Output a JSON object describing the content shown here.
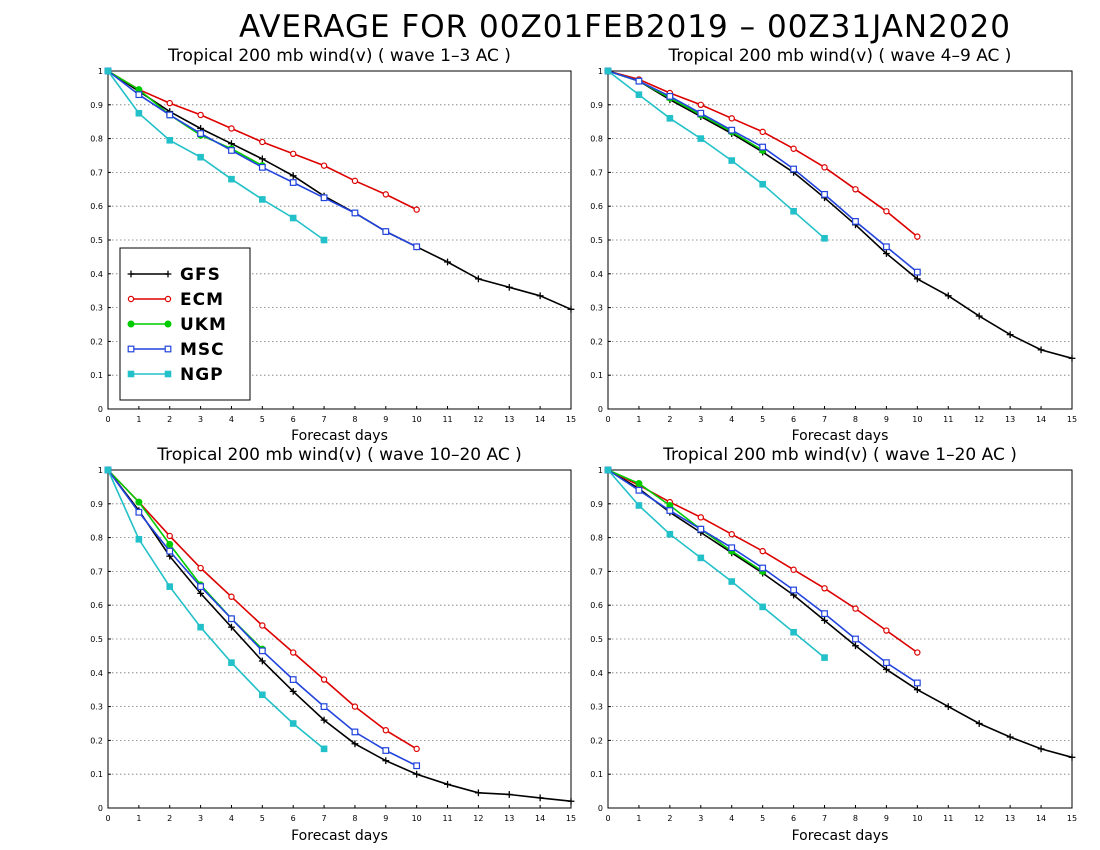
{
  "title": "AVERAGE FOR 00Z01FEB2019 – 00Z31JAN2020",
  "chart_data": [
    {
      "type": "line",
      "title": "Tropical 200 mb wind(v) ( wave 1–3 AC )",
      "xlabel": "Forecast days",
      "ylabel": "",
      "xlim": [
        0,
        15
      ],
      "ylim": [
        0,
        1
      ],
      "xticks": [
        "0",
        "1",
        "2",
        "3",
        "4",
        "5",
        "6",
        "7",
        "8",
        "9",
        "10",
        "11",
        "12",
        "13",
        "14",
        "15"
      ],
      "yticks": [
        "0",
        "0.1",
        "0.2",
        "0.3",
        "0.4",
        "0.5",
        "0.6",
        "0.7",
        "0.8",
        "0.9",
        "1"
      ],
      "grid": "horizontal dotted",
      "legend": "lower-left",
      "series": [
        {
          "name": "GFS",
          "color": "#000000",
          "marker": "plus",
          "x": [
            0,
            1,
            2,
            3,
            4,
            5,
            6,
            7,
            8,
            9,
            10,
            11,
            12,
            13,
            14,
            15
          ],
          "values": [
            1.0,
            0.94,
            0.88,
            0.83,
            0.785,
            0.74,
            0.69,
            0.63,
            0.58,
            0.525,
            0.48,
            0.435,
            0.385,
            0.36,
            0.335,
            0.295
          ]
        },
        {
          "name": "ECM",
          "color": "#dd0000",
          "marker": "circle",
          "x": [
            0,
            1,
            2,
            3,
            4,
            5,
            6,
            7,
            8,
            9,
            10
          ],
          "values": [
            1.0,
            0.945,
            0.905,
            0.87,
            0.83,
            0.79,
            0.755,
            0.72,
            0.675,
            0.635,
            0.59
          ]
        },
        {
          "name": "UKM",
          "color": "#00cc00",
          "marker": "filled-circle",
          "x": [
            0,
            1,
            2,
            3,
            4,
            5
          ],
          "values": [
            1.0,
            0.945,
            0.87,
            0.81,
            0.77,
            0.72
          ]
        },
        {
          "name": "MSC",
          "color": "#2244dd",
          "marker": "square",
          "x": [
            0,
            1,
            2,
            3,
            4,
            5,
            6,
            7,
            8,
            9,
            10
          ],
          "values": [
            1.0,
            0.93,
            0.87,
            0.815,
            0.765,
            0.715,
            0.67,
            0.625,
            0.58,
            0.525,
            0.48
          ]
        },
        {
          "name": "NGP",
          "color": "#22c0c8",
          "marker": "filled-square",
          "x": [
            0,
            1,
            2,
            3,
            4,
            5,
            6,
            7
          ],
          "values": [
            1.0,
            0.875,
            0.795,
            0.745,
            0.68,
            0.62,
            0.565,
            0.5
          ]
        }
      ]
    },
    {
      "type": "line",
      "title": "Tropical 200 mb wind(v) ( wave 4–9 AC )",
      "xlabel": "Forecast days",
      "ylabel": "",
      "xlim": [
        0,
        15
      ],
      "ylim": [
        0,
        1
      ],
      "xticks": [
        "0",
        "1",
        "2",
        "3",
        "4",
        "5",
        "6",
        "7",
        "8",
        "9",
        "10",
        "11",
        "12",
        "13",
        "14",
        "15"
      ],
      "yticks": [
        "0",
        "0.1",
        "0.2",
        "0.3",
        "0.4",
        "0.5",
        "0.6",
        "0.7",
        "0.8",
        "0.9",
        "1"
      ],
      "grid": "horizontal dotted",
      "legend": "none",
      "series": [
        {
          "name": "GFS",
          "color": "#000000",
          "marker": "plus",
          "x": [
            0,
            1,
            2,
            3,
            4,
            5,
            6,
            7,
            8,
            9,
            10,
            11,
            12,
            13,
            14,
            15
          ],
          "values": [
            1.0,
            0.97,
            0.915,
            0.865,
            0.815,
            0.76,
            0.7,
            0.625,
            0.545,
            0.46,
            0.385,
            0.335,
            0.275,
            0.22,
            0.175,
            0.15
          ]
        },
        {
          "name": "ECM",
          "color": "#dd0000",
          "marker": "circle",
          "x": [
            0,
            1,
            2,
            3,
            4,
            5,
            6,
            7,
            8,
            9,
            10
          ],
          "values": [
            1.0,
            0.975,
            0.935,
            0.9,
            0.86,
            0.82,
            0.77,
            0.715,
            0.65,
            0.585,
            0.51
          ]
        },
        {
          "name": "UKM",
          "color": "#00cc00",
          "marker": "filled-circle",
          "x": [
            0,
            1,
            2,
            3,
            4,
            5
          ],
          "values": [
            1.0,
            0.97,
            0.92,
            0.87,
            0.82,
            0.765
          ]
        },
        {
          "name": "MSC",
          "color": "#2244dd",
          "marker": "square",
          "x": [
            0,
            1,
            2,
            3,
            4,
            5,
            6,
            7,
            8,
            9,
            10
          ],
          "values": [
            1.0,
            0.97,
            0.925,
            0.875,
            0.825,
            0.775,
            0.71,
            0.635,
            0.555,
            0.48,
            0.405
          ]
        },
        {
          "name": "NGP",
          "color": "#22c0c8",
          "marker": "filled-square",
          "x": [
            0,
            1,
            2,
            3,
            4,
            5,
            6,
            7
          ],
          "values": [
            1.0,
            0.93,
            0.86,
            0.8,
            0.735,
            0.665,
            0.585,
            0.505
          ]
        }
      ]
    },
    {
      "type": "line",
      "title": "Tropical 200 mb wind(v) ( wave 10–20 AC )",
      "xlabel": "Forecast days",
      "ylabel": "",
      "xlim": [
        0,
        15
      ],
      "ylim": [
        0,
        1
      ],
      "xticks": [
        "0",
        "1",
        "2",
        "3",
        "4",
        "5",
        "6",
        "7",
        "8",
        "9",
        "10",
        "11",
        "12",
        "13",
        "14",
        "15"
      ],
      "yticks": [
        "0",
        "0.1",
        "0.2",
        "0.3",
        "0.4",
        "0.5",
        "0.6",
        "0.7",
        "0.8",
        "0.9",
        "1"
      ],
      "grid": "horizontal dotted",
      "legend": "none",
      "series": [
        {
          "name": "GFS",
          "color": "#000000",
          "marker": "plus",
          "x": [
            0,
            1,
            2,
            3,
            4,
            5,
            6,
            7,
            8,
            9,
            10,
            11,
            12,
            13,
            14,
            15
          ],
          "values": [
            1.0,
            0.88,
            0.745,
            0.635,
            0.535,
            0.435,
            0.345,
            0.26,
            0.19,
            0.14,
            0.1,
            0.07,
            0.045,
            0.04,
            0.03,
            0.02
          ]
        },
        {
          "name": "ECM",
          "color": "#dd0000",
          "marker": "circle",
          "x": [
            0,
            1,
            2,
            3,
            4,
            5,
            6,
            7,
            8,
            9,
            10
          ],
          "values": [
            1.0,
            0.905,
            0.805,
            0.71,
            0.625,
            0.54,
            0.46,
            0.38,
            0.3,
            0.23,
            0.175
          ]
        },
        {
          "name": "UKM",
          "color": "#00cc00",
          "marker": "filled-circle",
          "x": [
            0,
            1,
            2,
            3,
            4,
            5
          ],
          "values": [
            1.0,
            0.905,
            0.78,
            0.66,
            0.56,
            0.47
          ]
        },
        {
          "name": "MSC",
          "color": "#2244dd",
          "marker": "square",
          "x": [
            0,
            1,
            2,
            3,
            4,
            5,
            6,
            7,
            8,
            9,
            10
          ],
          "values": [
            1.0,
            0.875,
            0.76,
            0.655,
            0.56,
            0.465,
            0.38,
            0.3,
            0.225,
            0.17,
            0.125
          ]
        },
        {
          "name": "NGP",
          "color": "#22c0c8",
          "marker": "filled-square",
          "x": [
            0,
            1,
            2,
            3,
            4,
            5,
            6,
            7
          ],
          "values": [
            1.0,
            0.795,
            0.655,
            0.535,
            0.43,
            0.335,
            0.25,
            0.175
          ]
        }
      ]
    },
    {
      "type": "line",
      "title": "Tropical 200 mb wind(v) ( wave 1–20 AC )",
      "xlabel": "Forecast days",
      "ylabel": "",
      "xlim": [
        0,
        15
      ],
      "ylim": [
        0,
        1
      ],
      "xticks": [
        "0",
        "1",
        "2",
        "3",
        "4",
        "5",
        "6",
        "7",
        "8",
        "9",
        "10",
        "11",
        "12",
        "13",
        "14",
        "15"
      ],
      "yticks": [
        "0",
        "0.1",
        "0.2",
        "0.3",
        "0.4",
        "0.5",
        "0.6",
        "0.7",
        "0.8",
        "0.9",
        "1"
      ],
      "grid": "horizontal dotted",
      "legend": "none",
      "series": [
        {
          "name": "GFS",
          "color": "#000000",
          "marker": "plus",
          "x": [
            0,
            1,
            2,
            3,
            4,
            5,
            6,
            7,
            8,
            9,
            10,
            11,
            12,
            13,
            14,
            15
          ],
          "values": [
            1.0,
            0.945,
            0.875,
            0.815,
            0.755,
            0.695,
            0.63,
            0.555,
            0.48,
            0.41,
            0.35,
            0.3,
            0.25,
            0.21,
            0.175,
            0.15
          ]
        },
        {
          "name": "ECM",
          "color": "#dd0000",
          "marker": "circle",
          "x": [
            0,
            1,
            2,
            3,
            4,
            5,
            6,
            7,
            8,
            9,
            10
          ],
          "values": [
            1.0,
            0.955,
            0.905,
            0.86,
            0.81,
            0.76,
            0.705,
            0.65,
            0.59,
            0.525,
            0.46
          ]
        },
        {
          "name": "UKM",
          "color": "#00cc00",
          "marker": "filled-circle",
          "x": [
            0,
            1,
            2,
            3,
            4,
            5
          ],
          "values": [
            1.0,
            0.96,
            0.895,
            0.825,
            0.76,
            0.7
          ]
        },
        {
          "name": "MSC",
          "color": "#2244dd",
          "marker": "square",
          "x": [
            0,
            1,
            2,
            3,
            4,
            5,
            6,
            7,
            8,
            9,
            10
          ],
          "values": [
            1.0,
            0.94,
            0.88,
            0.825,
            0.77,
            0.71,
            0.645,
            0.575,
            0.5,
            0.43,
            0.37
          ]
        },
        {
          "name": "NGP",
          "color": "#22c0c8",
          "marker": "filled-square",
          "x": [
            0,
            1,
            2,
            3,
            4,
            5,
            6,
            7
          ],
          "values": [
            1.0,
            0.895,
            0.81,
            0.74,
            0.67,
            0.595,
            0.52,
            0.445
          ]
        }
      ]
    }
  ]
}
